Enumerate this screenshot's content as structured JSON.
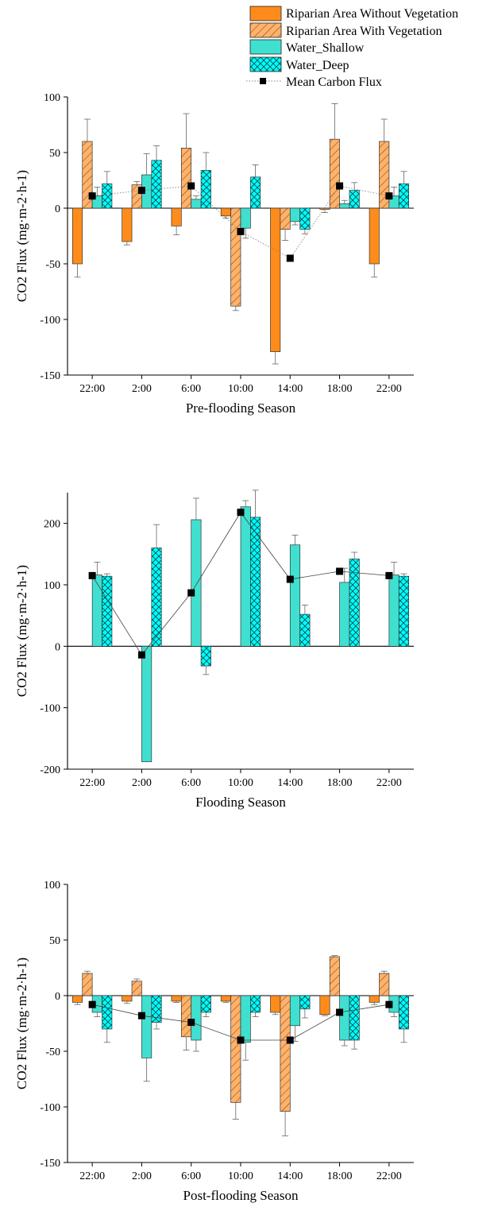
{
  "legend": [
    {
      "label": "Riparian Area Without Vegetation",
      "color": "#ff8c1a",
      "hatch": "none"
    },
    {
      "label": "Riparian Area With Vegetation",
      "color": "#ffb26b",
      "hatch": "diag"
    },
    {
      "label": "Water_Shallow",
      "color": "#40e0d0",
      "hatch": "none"
    },
    {
      "label": "Water_Deep",
      "color": "#00ffff",
      "hatch": "cross"
    },
    {
      "label": "Mean Carbon Flux",
      "color": "#000000",
      "hatch": "line"
    }
  ],
  "chart_data": [
    {
      "type": "bar",
      "categories": [
        "22:00",
        "2:00",
        "6:00",
        "10:00",
        "14:00",
        "18:00",
        "22:00"
      ],
      "xlabel": "Pre-flooding Season",
      "ylabel": "CO2 Flux (mg·m-2·h-1)",
      "ylim": [
        -150,
        100
      ],
      "yticks": [
        -150,
        -100,
        -50,
        0,
        50,
        100
      ],
      "mean_line_style": "dotted",
      "series": [
        {
          "name": "Riparian Area Without Vegetation",
          "values": [
            -50,
            -30,
            -16,
            -7,
            -129,
            -1,
            -50
          ],
          "errors": [
            12,
            3,
            8,
            2,
            11,
            3,
            12
          ]
        },
        {
          "name": "Riparian Area With Vegetation",
          "values": [
            60,
            21,
            54,
            -88,
            -19,
            62,
            60
          ],
          "errors": [
            20,
            3,
            31,
            4,
            10,
            32,
            20
          ]
        },
        {
          "name": "Water_Shallow",
          "values": [
            11,
            30,
            8,
            -18,
            -12,
            4,
            11
          ],
          "errors": [
            8,
            19,
            3,
            9,
            3,
            3,
            8
          ]
        },
        {
          "name": "Water_Deep",
          "values": [
            22,
            43,
            34,
            28,
            -19,
            16,
            22
          ],
          "errors": [
            11,
            13,
            16,
            11,
            4,
            7,
            11
          ]
        },
        {
          "name": "Mean Carbon Flux",
          "values": [
            11,
            16,
            20,
            -21,
            -45,
            20,
            11
          ]
        }
      ]
    },
    {
      "type": "bar",
      "categories": [
        "22:00",
        "2:00",
        "6:00",
        "10:00",
        "14:00",
        "18:00",
        "22:00"
      ],
      "xlabel": "Flooding Season",
      "ylabel": "CO2 Flux (mg·m-2·h-1)",
      "ylim": [
        -200,
        250
      ],
      "yticks": [
        -200,
        -100,
        0,
        100,
        200
      ],
      "mean_line_style": "solid",
      "series": [
        {
          "name": "Riparian Area Without Vegetation",
          "values": [
            null,
            null,
            null,
            null,
            null,
            null,
            null
          ],
          "errors": [
            null,
            null,
            null,
            null,
            null,
            null,
            null
          ]
        },
        {
          "name": "Riparian Area With Vegetation",
          "values": [
            null,
            null,
            null,
            null,
            null,
            null,
            null
          ],
          "errors": [
            null,
            null,
            null,
            null,
            null,
            null,
            null
          ]
        },
        {
          "name": "Water_Shallow",
          "values": [
            116,
            -188,
            206,
            227,
            165,
            104,
            116
          ],
          "errors": [
            21,
            0,
            35,
            10,
            16,
            23,
            21
          ]
        },
        {
          "name": "Water_Deep",
          "values": [
            114,
            160,
            -32,
            210,
            52,
            142,
            114
          ],
          "errors": [
            4,
            38,
            14,
            44,
            15,
            11,
            4
          ]
        },
        {
          "name": "Mean Carbon Flux",
          "values": [
            115,
            -14,
            87,
            218,
            109,
            122,
            115
          ]
        }
      ]
    },
    {
      "type": "bar",
      "categories": [
        "22:00",
        "2:00",
        "6:00",
        "10:00",
        "14:00",
        "18:00",
        "22:00"
      ],
      "xlabel": "Post-flooding Season",
      "ylabel": "CO2 Flux (mg·m-2·h-1)",
      "ylim": [
        -150,
        100
      ],
      "yticks": [
        -150,
        -100,
        -50,
        0,
        50,
        100
      ],
      "mean_line_style": "solid",
      "series": [
        {
          "name": "Riparian Area Without Vegetation",
          "values": [
            -6,
            -5,
            -5,
            -5,
            -15,
            -17,
            -6
          ],
          "errors": [
            2,
            2,
            1,
            1,
            2,
            1,
            2
          ]
        },
        {
          "name": "Riparian Area With Vegetation",
          "values": [
            20,
            13,
            -37,
            -96,
            -104,
            35,
            20
          ],
          "errors": [
            2,
            2,
            12,
            15,
            22,
            1,
            2
          ]
        },
        {
          "name": "Water_Shallow",
          "values": [
            -15,
            -56,
            -40,
            -42,
            -27,
            -40,
            -15
          ],
          "errors": [
            4,
            21,
            10,
            16,
            14,
            5,
            4
          ]
        },
        {
          "name": "Water_Deep",
          "values": [
            -30,
            -24,
            -15,
            -15,
            -12,
            -40,
            -30
          ],
          "errors": [
            12,
            6,
            4,
            4,
            8,
            8,
            12
          ]
        },
        {
          "name": "Mean Carbon Flux",
          "values": [
            -8,
            -18,
            -24,
            -40,
            -40,
            -15,
            -8
          ]
        }
      ]
    }
  ]
}
